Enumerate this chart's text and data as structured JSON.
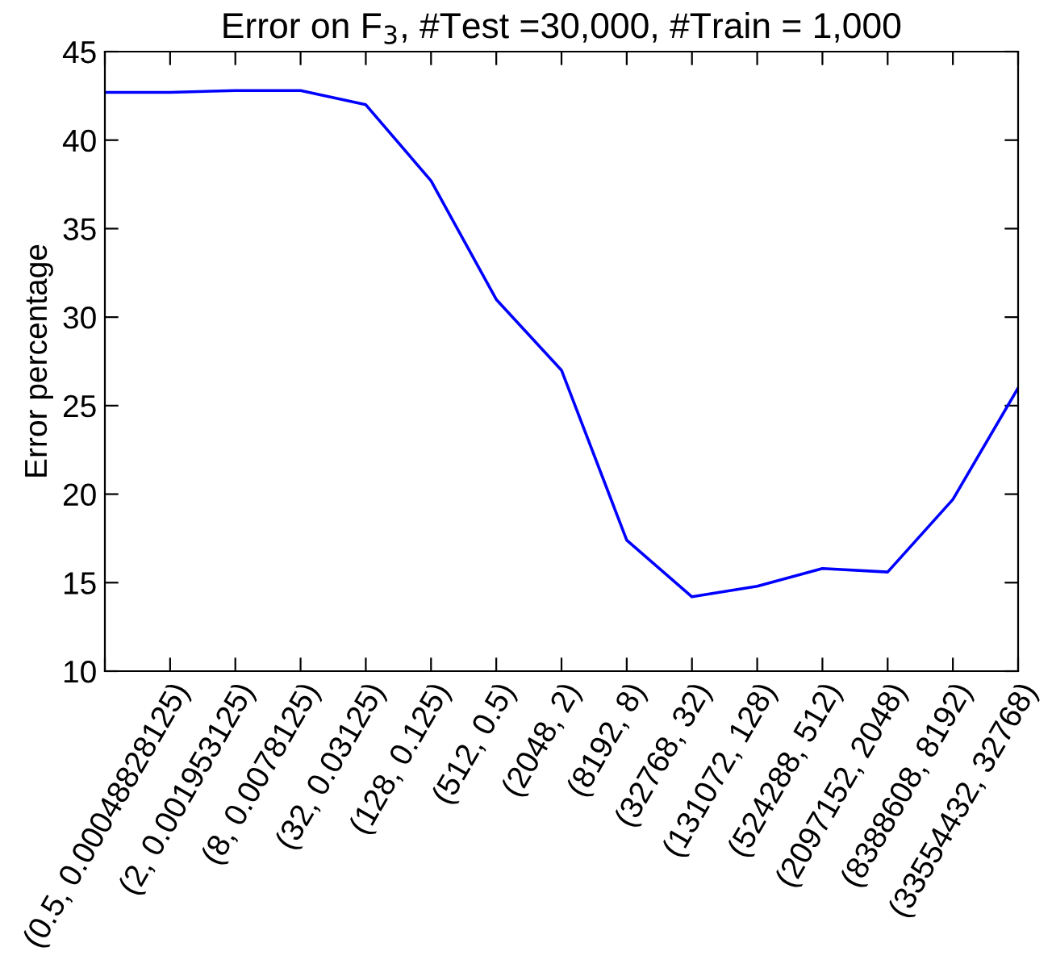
{
  "chart_data": {
    "type": "line",
    "title": "Error on F$_{3}$, #Test =30,000, #Train = 1,000",
    "ylabel": "Error percentage",
    "categories": [
      null,
      "(0.5, 0.00048828125)",
      "(2, 0.001953125)",
      "(8, 0.0078125)",
      "(32, 0.03125)",
      "(128, 0.125)",
      "(512, 0.5)",
      "(2048, 2)",
      "(8192, 8)",
      "(32768, 32)",
      "(131072, 128)",
      "(524288, 512)",
      "(2097152, 2048)",
      "(8388608, 8192)",
      "(33554432, 32768)"
    ],
    "series": [
      {
        "color": "#0000ff",
        "values": [
          42.7,
          42.7,
          42.8,
          42.8,
          42.0,
          37.7,
          31.0,
          27.0,
          17.4,
          14.2,
          14.8,
          15.8,
          15.6,
          19.7,
          26.0
        ]
      }
    ],
    "ylim": [
      10,
      45
    ],
    "yticks": [
      10,
      15,
      20,
      25,
      30,
      35,
      40,
      45
    ],
    "grid": false,
    "legend": false,
    "marker": "none",
    "line_style": "solid"
  }
}
